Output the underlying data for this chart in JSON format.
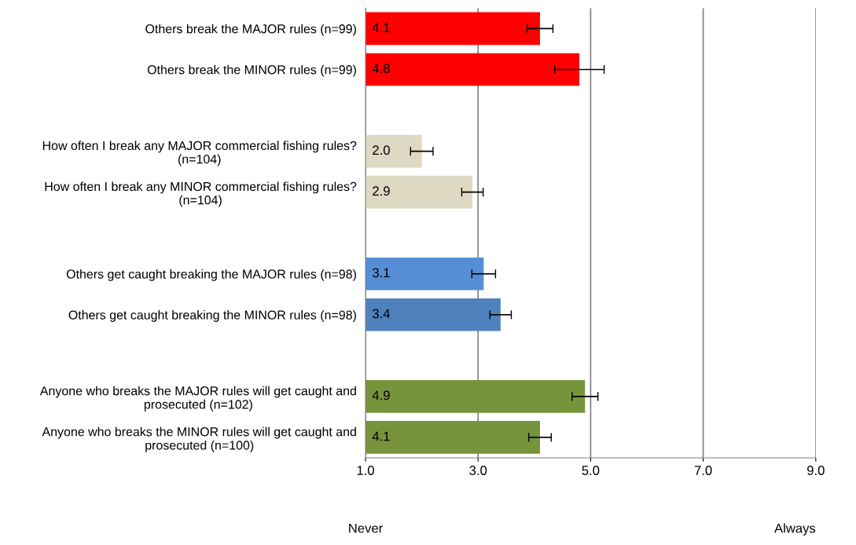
{
  "chart_data": {
    "type": "bar",
    "orientation": "horizontal",
    "categories": [
      "Others break the MAJOR rules (n=99)",
      "Others break the MINOR rules (n=99)",
      null,
      "How often I break any MAJOR commercial fishing rules?\n(n=104)",
      "How often I break any MINOR commercial fishing rules?\n(n=104)",
      null,
      "Others get caught breaking the MAJOR rules (n=98)",
      "Others get caught breaking the MINOR rules (n=98)",
      null,
      "Anyone who breaks the MAJOR rules will get caught and\nprosecuted (n=102)",
      "Anyone who breaks the MINOR rules will get caught and\nprosecuted (n=100)"
    ],
    "values": [
      4.1,
      4.8,
      null,
      2.0,
      2.9,
      null,
      3.1,
      3.4,
      null,
      4.9,
      4.1
    ],
    "errors": [
      0.23,
      0.44,
      null,
      0.2,
      0.19,
      null,
      0.21,
      0.19,
      null,
      0.23,
      0.2
    ],
    "colors": [
      "#ff0000",
      "#ff0000",
      null,
      "#ddd9c3",
      "#ddd9c3",
      null,
      "#558ed5",
      "#4f81bd",
      null,
      "#77933c",
      "#77933c"
    ],
    "value_labels": [
      "4.1",
      "4.8",
      null,
      "2.0",
      "2.9",
      null,
      "3.1",
      "3.4",
      null,
      "4.9",
      "4.1"
    ],
    "xlim": [
      1,
      9
    ],
    "xticks": [
      {
        "value": 1,
        "label": "1.0"
      },
      {
        "value": 3,
        "label": "3.0"
      },
      {
        "value": 5,
        "label": "5.0"
      },
      {
        "value": 7,
        "label": "7.0"
      },
      {
        "value": 9,
        "label": "9.0"
      }
    ],
    "grid": "x",
    "annotations": [
      "Never",
      "Always"
    ]
  }
}
